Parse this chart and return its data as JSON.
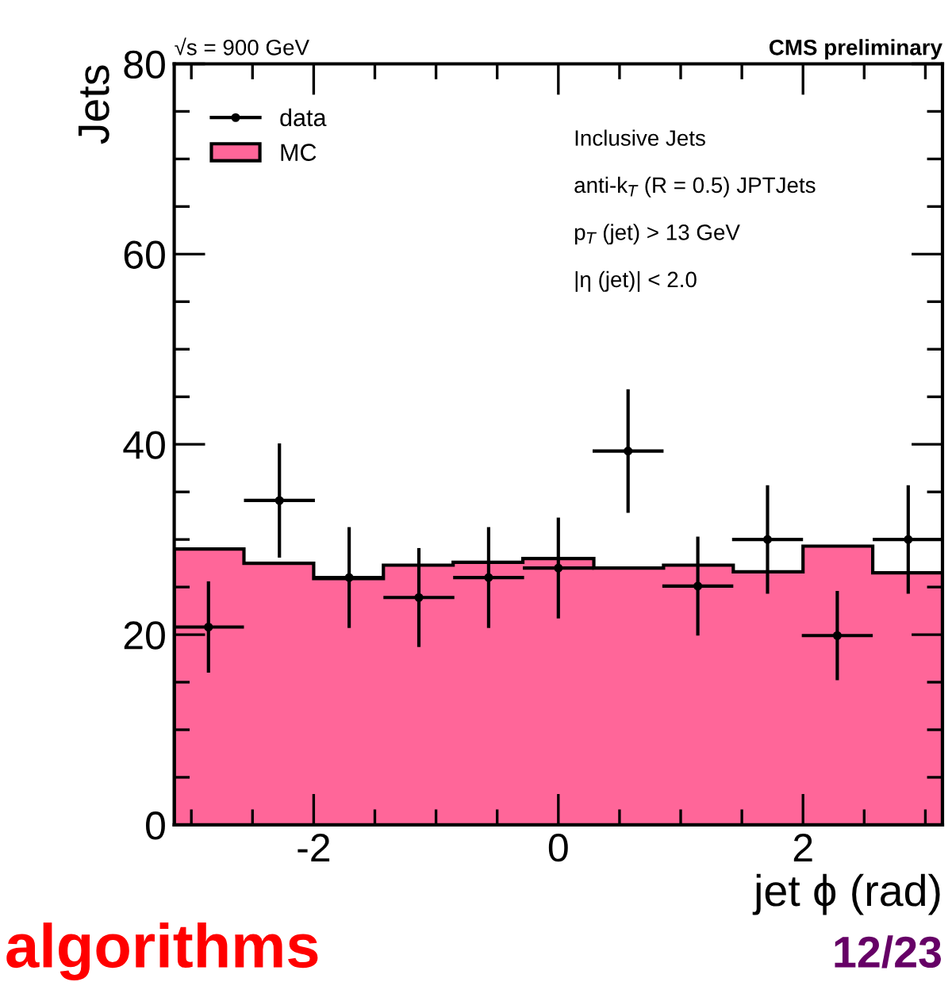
{
  "chart_data": {
    "type": "histogram",
    "title": "CMS preliminary",
    "subtitle": "√s = 900 GeV",
    "xlabel": "jet ϕ (rad)",
    "ylabel": "Jets",
    "bins": [
      -3.14,
      -2.57,
      -2.0,
      -1.43,
      -0.86,
      -0.29,
      0.29,
      0.86,
      1.43,
      2.0,
      2.57,
      3.14
    ],
    "series": [
      {
        "name": "MC",
        "color": "#ff6699",
        "values": [
          29.0,
          27.5,
          25.9,
          27.3,
          27.6,
          28.0,
          27.0,
          27.3,
          26.6,
          29.3,
          26.5
        ]
      },
      {
        "name": "data",
        "type": "scatter",
        "color": "#000000",
        "x": [
          -2.86,
          -2.28,
          -1.71,
          -1.14,
          -0.57,
          0,
          0.57,
          1.14,
          1.71,
          2.28,
          2.86
        ],
        "values": [
          20.8,
          34.1,
          26.0,
          23.9,
          26.0,
          27.0,
          39.3,
          25.1,
          30.0,
          19.9,
          30.0
        ],
        "errors": [
          4.8,
          6.0,
          5.3,
          5.2,
          5.3,
          5.3,
          6.5,
          5.2,
          5.7,
          4.7,
          5.7
        ],
        "xerrors": [
          0.29,
          0.29,
          0.29,
          0.29,
          0.29,
          0.29,
          0.29,
          0.29,
          0.29,
          0.29,
          0.29
        ]
      }
    ],
    "xlim": [
      -3.14,
      3.14
    ],
    "ylim": [
      0,
      80
    ],
    "xticks": [
      -2,
      0,
      2
    ],
    "yticks": [
      0,
      20,
      40,
      60,
      80
    ],
    "legend": "top left",
    "grid": false,
    "annotations": [
      "Inclusive Jets",
      "anti-k$_{T}$ (R = 0.5) JPTJets",
      "p$_{T}$ (jet) > 13 GeV",
      "|η (jet)| < 2.0",
      "algorithms",
      "12/23"
    ]
  }
}
